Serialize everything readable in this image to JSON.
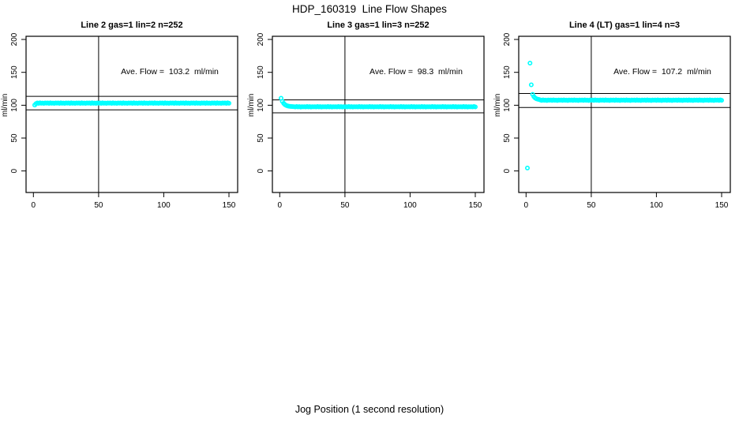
{
  "title": "HDP_160319  Line Flow Shapes",
  "xlabel": "Jog Position (1 second resolution)",
  "ylabel": "ml/min",
  "accent_color": "#00FFFF",
  "axis_color": "#000000",
  "chart_data": [
    {
      "type": "scatter",
      "title": "Line 2 gas=1 lin=2 n=252",
      "annotation": "Ave. Flow =  103.2  ml/min",
      "ave_flow": 103.2,
      "ylabel": "ml/min",
      "x_ticks": [
        0,
        50,
        100,
        150
      ],
      "y_ticks": [
        0,
        50,
        100,
        150,
        200
      ],
      "vline_x": 50,
      "hlines": [
        113.5,
        92.9
      ],
      "x_start": 1,
      "x_step": 1,
      "y": [
        100.3,
        102.4,
        103.4,
        102.9,
        103.6,
        103.0,
        103.3,
        102.8,
        103.5,
        103.1,
        103.4,
        102.9,
        103.6,
        103.0,
        103.3,
        102.8,
        103.5,
        103.1,
        103.4,
        102.9,
        103.6,
        103.0,
        103.3,
        102.8,
        103.5,
        103.1,
        103.4,
        102.9,
        103.6,
        103.0,
        103.3,
        102.8,
        103.5,
        103.1,
        103.4,
        102.9,
        103.6,
        103.0,
        103.3,
        102.8,
        103.5,
        103.1,
        103.4,
        102.9,
        103.6,
        103.0,
        103.3,
        102.8,
        103.5,
        103.1,
        103.4,
        102.9,
        103.6,
        103.0,
        103.3,
        102.8,
        103.5,
        103.1,
        103.4,
        102.9,
        103.6,
        103.0,
        103.3,
        102.8,
        103.5,
        103.1,
        103.4,
        102.9,
        103.6,
        103.0,
        103.3,
        102.8,
        103.5,
        103.1,
        103.4,
        102.9,
        103.6,
        103.0,
        103.3,
        102.8,
        103.5,
        103.1,
        103.4,
        102.9,
        103.6,
        103.0,
        103.3,
        102.8,
        103.5,
        103.1,
        103.4,
        102.9,
        103.6,
        103.0,
        103.3,
        102.8,
        103.5,
        103.1,
        103.4,
        102.9,
        103.6,
        103.0,
        103.3,
        102.8,
        103.5,
        103.1,
        103.4,
        102.9,
        103.6,
        103.0,
        103.3,
        102.8,
        103.5,
        103.1,
        103.4,
        102.9,
        103.6,
        103.0,
        103.3,
        102.8,
        103.5,
        103.1,
        103.4,
        102.9,
        103.6,
        103.0,
        103.3,
        102.8,
        103.5,
        103.1,
        103.4,
        102.9,
        103.6,
        103.0,
        103.3,
        102.8,
        103.5,
        103.1,
        103.4,
        102.9,
        103.6,
        103.0,
        103.3,
        102.8,
        103.5,
        103.1,
        103.4,
        102.9,
        103.6,
        103.0
      ]
    },
    {
      "type": "scatter",
      "title": "Line 3 gas=1 lin=3 n=252",
      "annotation": "Ave. Flow =  98.3  ml/min",
      "ave_flow": 98.3,
      "ylabel": "ml/min",
      "x_ticks": [
        0,
        50,
        100,
        150
      ],
      "y_ticks": [
        0,
        50,
        100,
        150,
        200
      ],
      "vline_x": 50,
      "hlines": [
        108.1,
        88.5
      ],
      "x_start": 1,
      "x_step": 1,
      "y": [
        110.6,
        105.9,
        102.9,
        100.9,
        99.7,
        99.0,
        98.5,
        98.2,
        98.0,
        97.9,
        97.8,
        97.4,
        98.0,
        97.5,
        97.9,
        97.3,
        97.7,
        97.6,
        97.8,
        97.4,
        98.0,
        97.5,
        97.9,
        97.3,
        97.7,
        97.6,
        97.8,
        97.4,
        98.0,
        97.5,
        97.9,
        97.3,
        97.7,
        97.6,
        97.8,
        97.4,
        98.0,
        97.5,
        97.9,
        97.3,
        97.7,
        97.6,
        97.8,
        97.4,
        98.0,
        97.5,
        97.9,
        97.3,
        97.7,
        97.6,
        97.8,
        97.4,
        98.0,
        97.5,
        97.9,
        97.3,
        97.7,
        97.6,
        97.8,
        97.4,
        98.0,
        97.5,
        97.9,
        97.3,
        97.7,
        97.6,
        97.8,
        97.4,
        98.0,
        97.5,
        97.9,
        97.3,
        97.7,
        97.6,
        97.8,
        97.4,
        98.0,
        97.5,
        97.9,
        97.3,
        97.7,
        97.6,
        97.8,
        97.4,
        98.0,
        97.5,
        97.9,
        97.3,
        97.7,
        97.6,
        97.8,
        97.4,
        98.0,
        97.5,
        97.9,
        97.3,
        97.7,
        97.6,
        97.8,
        97.4,
        98.0,
        97.5,
        97.9,
        97.3,
        97.7,
        97.6,
        97.8,
        97.4,
        98.0,
        97.5,
        97.9,
        97.3,
        97.7,
        97.6,
        97.8,
        97.4,
        98.0,
        97.5,
        97.9,
        97.3,
        97.7,
        97.6,
        97.8,
        97.4,
        98.0,
        97.5,
        97.9,
        97.3,
        97.7,
        97.6,
        97.8,
        97.4,
        98.0,
        97.5,
        97.9,
        97.3,
        97.7,
        97.6,
        97.8,
        97.4,
        98.0,
        97.5,
        97.9,
        97.3,
        97.7,
        97.6,
        97.8,
        97.4,
        98.0,
        97.5
      ]
    },
    {
      "type": "scatter",
      "title": "Line 4 (LT) gas=1 lin=4 n=3",
      "annotation": "Ave. Flow =  107.2  ml/min",
      "ave_flow": 107.2,
      "ylabel": "ml/min",
      "x_ticks": [
        0,
        50,
        100,
        150
      ],
      "y_ticks": [
        0,
        50,
        100,
        150,
        200
      ],
      "vline_x": 50,
      "hlines": [
        117.9,
        96.5
      ],
      "x_start": 1,
      "x_step": 1,
      "y": [
        4.5,
        null,
        164.0,
        131.0,
        116.5,
        113.0,
        111.0,
        109.8,
        109.2,
        108.7,
        107.9,
        107.3,
        108.1,
        107.5,
        107.8,
        107.2,
        108.0,
        107.6,
        107.9,
        107.3,
        108.1,
        107.5,
        107.8,
        107.2,
        108.0,
        107.6,
        107.9,
        107.3,
        108.1,
        107.5,
        107.8,
        107.2,
        108.0,
        107.6,
        107.9,
        107.3,
        108.1,
        107.5,
        107.8,
        107.2,
        108.0,
        107.6,
        107.9,
        107.3,
        108.1,
        107.5,
        107.8,
        107.2,
        108.0,
        107.6,
        107.9,
        107.3,
        108.1,
        107.5,
        107.8,
        107.2,
        108.0,
        107.6,
        107.9,
        107.3,
        108.1,
        107.5,
        107.8,
        107.2,
        108.0,
        107.6,
        107.9,
        107.3,
        108.1,
        107.5,
        107.8,
        107.2,
        108.0,
        107.6,
        107.9,
        107.3,
        108.1,
        107.5,
        107.8,
        107.2,
        108.0,
        107.6,
        107.9,
        107.3,
        108.1,
        107.5,
        107.8,
        107.2,
        108.0,
        107.6,
        107.9,
        107.3,
        108.1,
        107.5,
        107.8,
        107.2,
        108.0,
        107.6,
        107.9,
        107.3,
        108.1,
        107.5,
        107.8,
        107.2,
        108.0,
        107.6,
        107.9,
        107.3,
        108.1,
        107.5,
        107.8,
        107.2,
        108.0,
        107.6,
        107.9,
        107.3,
        108.1,
        107.5,
        107.8,
        107.2,
        108.0,
        107.6,
        107.9,
        107.3,
        108.1,
        107.5,
        107.8,
        107.2,
        108.0,
        107.6,
        107.9,
        107.3,
        108.1,
        107.5,
        107.8,
        107.2,
        108.0,
        107.6,
        107.9,
        107.3,
        108.1,
        107.5,
        107.8,
        107.2,
        108.0,
        107.6,
        107.9,
        107.3,
        108.1,
        107.5
      ]
    }
  ]
}
